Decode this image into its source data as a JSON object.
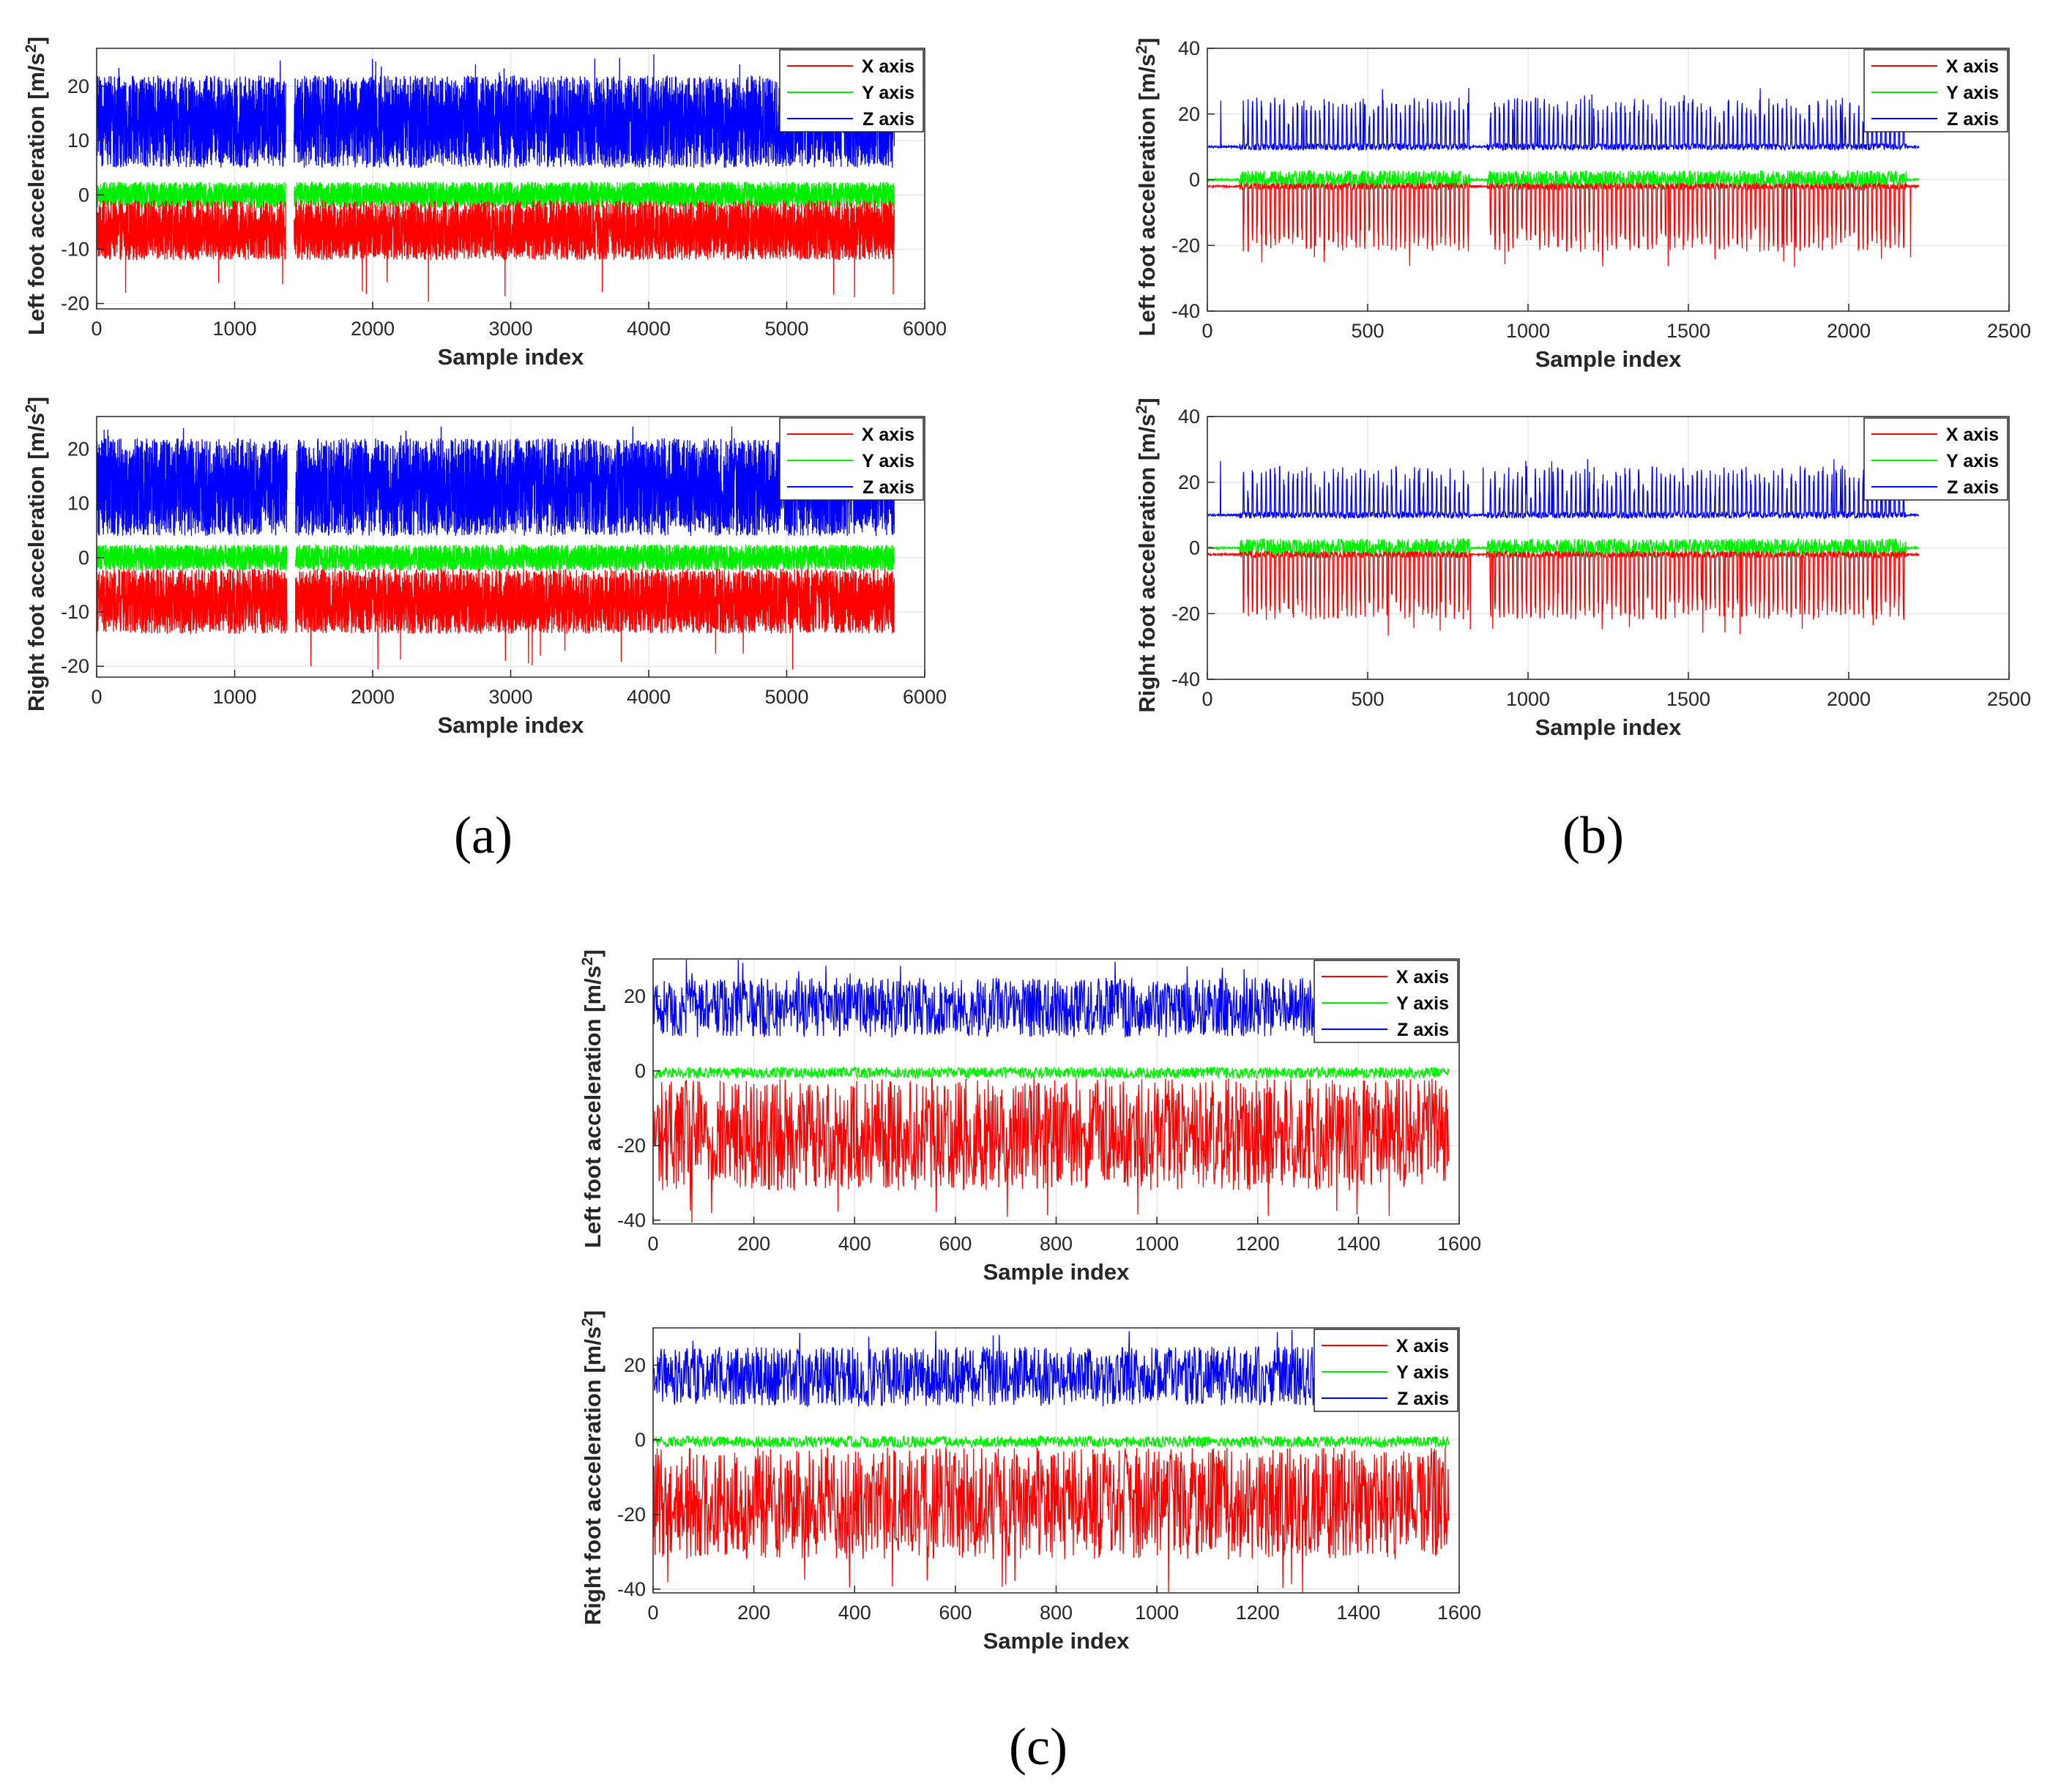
{
  "figure": {
    "panel_labels": [
      "(a)",
      "(b)",
      "(c)"
    ]
  },
  "colors": {
    "x": "#ff0000",
    "y": "#00ee00",
    "z": "#0000ff",
    "grid": "#e6e6e6",
    "axis": "#262626"
  },
  "legend_labels": [
    "X axis",
    "Y axis",
    "Z axis"
  ],
  "chart_data": [
    {
      "id": "a-left",
      "type": "line",
      "panel": "(a)",
      "xlabel": "Sample index",
      "ylabel": "Left foot acceleration [m/s",
      "xlim": [
        0,
        6000
      ],
      "ylim": [
        -21,
        27
      ],
      "xticks": [
        0,
        1000,
        2000,
        3000,
        4000,
        5000,
        6000
      ],
      "yticks": [
        -20,
        -10,
        0,
        10,
        20
      ],
      "n_samples": 5780,
      "grid": true,
      "legend": "top-right",
      "gaps": [
        [
          1370,
          1430
        ]
      ],
      "series": [
        {
          "name": "X axis",
          "baseline": -4,
          "typical_range": [
            -12,
            -1
          ],
          "extreme_min": -20
        },
        {
          "name": "Y axis",
          "baseline": -1,
          "typical_range": [
            -4,
            4
          ]
        },
        {
          "name": "Z axis",
          "baseline": 10,
          "typical_range": [
            5,
            22
          ],
          "extreme_max": 26
        }
      ]
    },
    {
      "id": "a-right",
      "type": "line",
      "panel": "(a)",
      "xlabel": "Sample index",
      "ylabel": "Right foot acceleration [m/s",
      "xlim": [
        0,
        6000
      ],
      "ylim": [
        -22,
        26
      ],
      "xticks": [
        0,
        1000,
        2000,
        3000,
        4000,
        5000,
        6000
      ],
      "yticks": [
        -20,
        -10,
        0,
        10,
        20
      ],
      "n_samples": 5780,
      "grid": true,
      "legend": "top-right",
      "gaps": [
        [
          1380,
          1440
        ]
      ],
      "series": [
        {
          "name": "X axis",
          "baseline": -3,
          "typical_range": [
            -14,
            -2
          ],
          "extreme_min": -21
        },
        {
          "name": "Y axis",
          "baseline": -1,
          "typical_range": [
            -4,
            4
          ]
        },
        {
          "name": "Z axis",
          "baseline": 10,
          "typical_range": [
            4,
            22
          ],
          "extreme_max": 25
        }
      ]
    },
    {
      "id": "b-left",
      "type": "line",
      "panel": "(b)",
      "xlabel": "Sample index",
      "ylabel": "Left foot acceleration [m/s",
      "xlim": [
        0,
        2500
      ],
      "ylim": [
        -40,
        40
      ],
      "xticks": [
        0,
        500,
        1000,
        1500,
        2000,
        2500
      ],
      "yticks": [
        -40,
        -20,
        0,
        20,
        40
      ],
      "n_samples": 2220,
      "grid": true,
      "legend": "top-right",
      "quiet": [
        [
          0,
          100
        ],
        [
          820,
          870
        ],
        [
          2180,
          2220
        ]
      ],
      "series": [
        {
          "name": "X axis",
          "baseline": -2,
          "typical_range": [
            -22,
            -2
          ],
          "extreme_min": -27
        },
        {
          "name": "Y axis",
          "baseline": 0,
          "typical_range": [
            -3,
            4
          ]
        },
        {
          "name": "Z axis",
          "baseline": 10,
          "typical_range": [
            9,
            25
          ],
          "extreme_max": 28
        }
      ]
    },
    {
      "id": "b-right",
      "type": "line",
      "panel": "(b)",
      "xlabel": "Sample index",
      "ylabel": "Right foot acceleration [m/s",
      "xlim": [
        0,
        2500
      ],
      "ylim": [
        -40,
        40
      ],
      "xticks": [
        0,
        500,
        1000,
        1500,
        2000,
        2500
      ],
      "yticks": [
        -40,
        -20,
        0,
        20,
        40
      ],
      "n_samples": 2220,
      "grid": true,
      "legend": "top-right",
      "quiet": [
        [
          0,
          100
        ],
        [
          820,
          870
        ],
        [
          2180,
          2220
        ]
      ],
      "series": [
        {
          "name": "X axis",
          "baseline": -2,
          "typical_range": [
            -22,
            -2
          ],
          "extreme_min": -27
        },
        {
          "name": "Y axis",
          "baseline": 0,
          "typical_range": [
            -3,
            4
          ]
        },
        {
          "name": "Z axis",
          "baseline": 10,
          "typical_range": [
            9,
            25
          ],
          "extreme_max": 28
        }
      ]
    },
    {
      "id": "c-left",
      "type": "line",
      "panel": "(c)",
      "xlabel": "Sample index",
      "ylabel": "Left foot acceleration [m/s",
      "xlim": [
        0,
        1600
      ],
      "ylim": [
        -41,
        30
      ],
      "xticks": [
        0,
        200,
        400,
        600,
        800,
        1000,
        1200,
        1400,
        1600
      ],
      "yticks": [
        -40,
        -20,
        0,
        20
      ],
      "n_samples": 1580,
      "grid": true,
      "legend": "top-right",
      "series": [
        {
          "name": "X axis",
          "baseline": -2,
          "typical_range": [
            -32,
            -2
          ],
          "extreme_min": -41
        },
        {
          "name": "Y axis",
          "baseline": 0,
          "typical_range": [
            -3,
            2
          ]
        },
        {
          "name": "Z axis",
          "baseline": 10,
          "typical_range": [
            9,
            25
          ],
          "extreme_max": 30
        }
      ]
    },
    {
      "id": "c-right",
      "type": "line",
      "panel": "(c)",
      "xlabel": "Sample index",
      "ylabel": "Right foot acceleration [m/s",
      "xlim": [
        0,
        1600
      ],
      "ylim": [
        -41,
        30
      ],
      "xticks": [
        0,
        200,
        400,
        600,
        800,
        1000,
        1200,
        1400,
        1600
      ],
      "yticks": [
        -40,
        -20,
        0,
        20
      ],
      "n_samples": 1580,
      "grid": true,
      "legend": "top-right",
      "series": [
        {
          "name": "X axis",
          "baseline": -2,
          "typical_range": [
            -32,
            -2
          ],
          "extreme_min": -41
        },
        {
          "name": "Y axis",
          "baseline": 0,
          "typical_range": [
            -3,
            2
          ]
        },
        {
          "name": "Z axis",
          "baseline": 10,
          "typical_range": [
            9,
            25
          ],
          "extreme_max": 30
        }
      ]
    }
  ]
}
